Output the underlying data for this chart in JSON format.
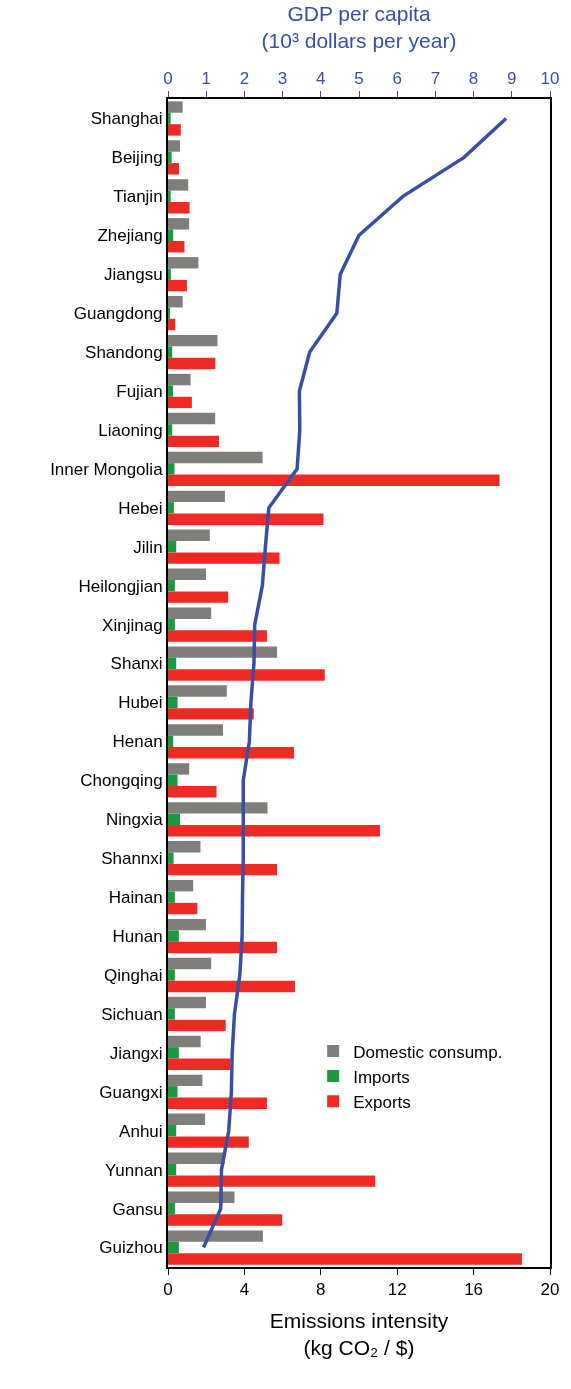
{
  "chart_data": {
    "type": "bar",
    "orientation": "horizontal",
    "xlabel": "Emissions intensity\n(kg CO₂ / $)",
    "x2label": "GDP per capita\n(10³ dollars per year)",
    "categories": [
      "Shanghai",
      "Beijing",
      "Tianjin",
      "Zhejiang",
      "Jiangsu",
      "Guangdong",
      "Shandong",
      "Fujian",
      "Liaoning",
      "Inner Mongolia",
      "Hebei",
      "Jilin",
      "Heilongjian",
      "Xinjinag",
      "Shanxi",
      "Hubei",
      "Henan",
      "Chongqing",
      "Ningxia",
      "Shannxi",
      "Hainan",
      "Hunan",
      "Qinghai",
      "Sichuan",
      "Jiangxi",
      "Guangxi",
      "Anhui",
      "Yunnan",
      "Gansu",
      "Guizhou"
    ],
    "series": [
      {
        "name": "Domestic consump.",
        "color": "#7f7e7a",
        "values": [
          0.77,
          0.63,
          1.06,
          1.11,
          1.59,
          0.77,
          2.59,
          1.18,
          2.47,
          4.95,
          2.98,
          2.19,
          1.99,
          2.26,
          5.71,
          3.08,
          2.88,
          1.11,
          5.21,
          1.7,
          1.32,
          1.99,
          2.26,
          1.99,
          1.71,
          1.8,
          1.94,
          2.96,
          3.48,
          4.97
        ]
      },
      {
        "name": "Imports",
        "color": "#1a9a40",
        "values": [
          0.14,
          0.19,
          0.14,
          0.27,
          0.15,
          0.1,
          0.22,
          0.26,
          0.22,
          0.34,
          0.31,
          0.43,
          0.36,
          0.36,
          0.43,
          0.5,
          0.27,
          0.5,
          0.63,
          0.29,
          0.36,
          0.57,
          0.36,
          0.36,
          0.57,
          0.5,
          0.43,
          0.43,
          0.36,
          0.57
        ]
      },
      {
        "name": "Exports",
        "color": "#ee2a24",
        "values": [
          0.67,
          0.58,
          1.13,
          0.86,
          0.99,
          0.38,
          2.48,
          1.25,
          2.67,
          17.36,
          8.14,
          5.84,
          3.15,
          5.18,
          8.21,
          4.49,
          6.6,
          2.54,
          11.1,
          5.71,
          1.54,
          5.71,
          6.65,
          3.02,
          3.27,
          5.18,
          4.23,
          10.85,
          5.98,
          18.53
        ]
      },
      {
        "type": "line",
        "axis": "x2",
        "color": "#3a4fa3",
        "values": [
          8.85,
          7.75,
          6.15,
          5.0,
          4.51,
          4.42,
          3.71,
          3.44,
          3.45,
          3.38,
          2.64,
          2.55,
          2.47,
          2.27,
          2.25,
          2.17,
          2.13,
          1.97,
          1.97,
          1.97,
          1.95,
          1.94,
          1.88,
          1.74,
          1.68,
          1.66,
          1.59,
          1.4,
          1.38,
          0.93
        ]
      }
    ],
    "xlim": [
      0,
      20
    ],
    "xticks": [
      0,
      4,
      8,
      12,
      16,
      20
    ],
    "x2lim": [
      0,
      10
    ],
    "x2ticks": [
      0,
      1,
      2,
      3,
      4,
      5,
      6,
      7,
      8,
      9,
      10
    ],
    "legend": "bottom right"
  }
}
